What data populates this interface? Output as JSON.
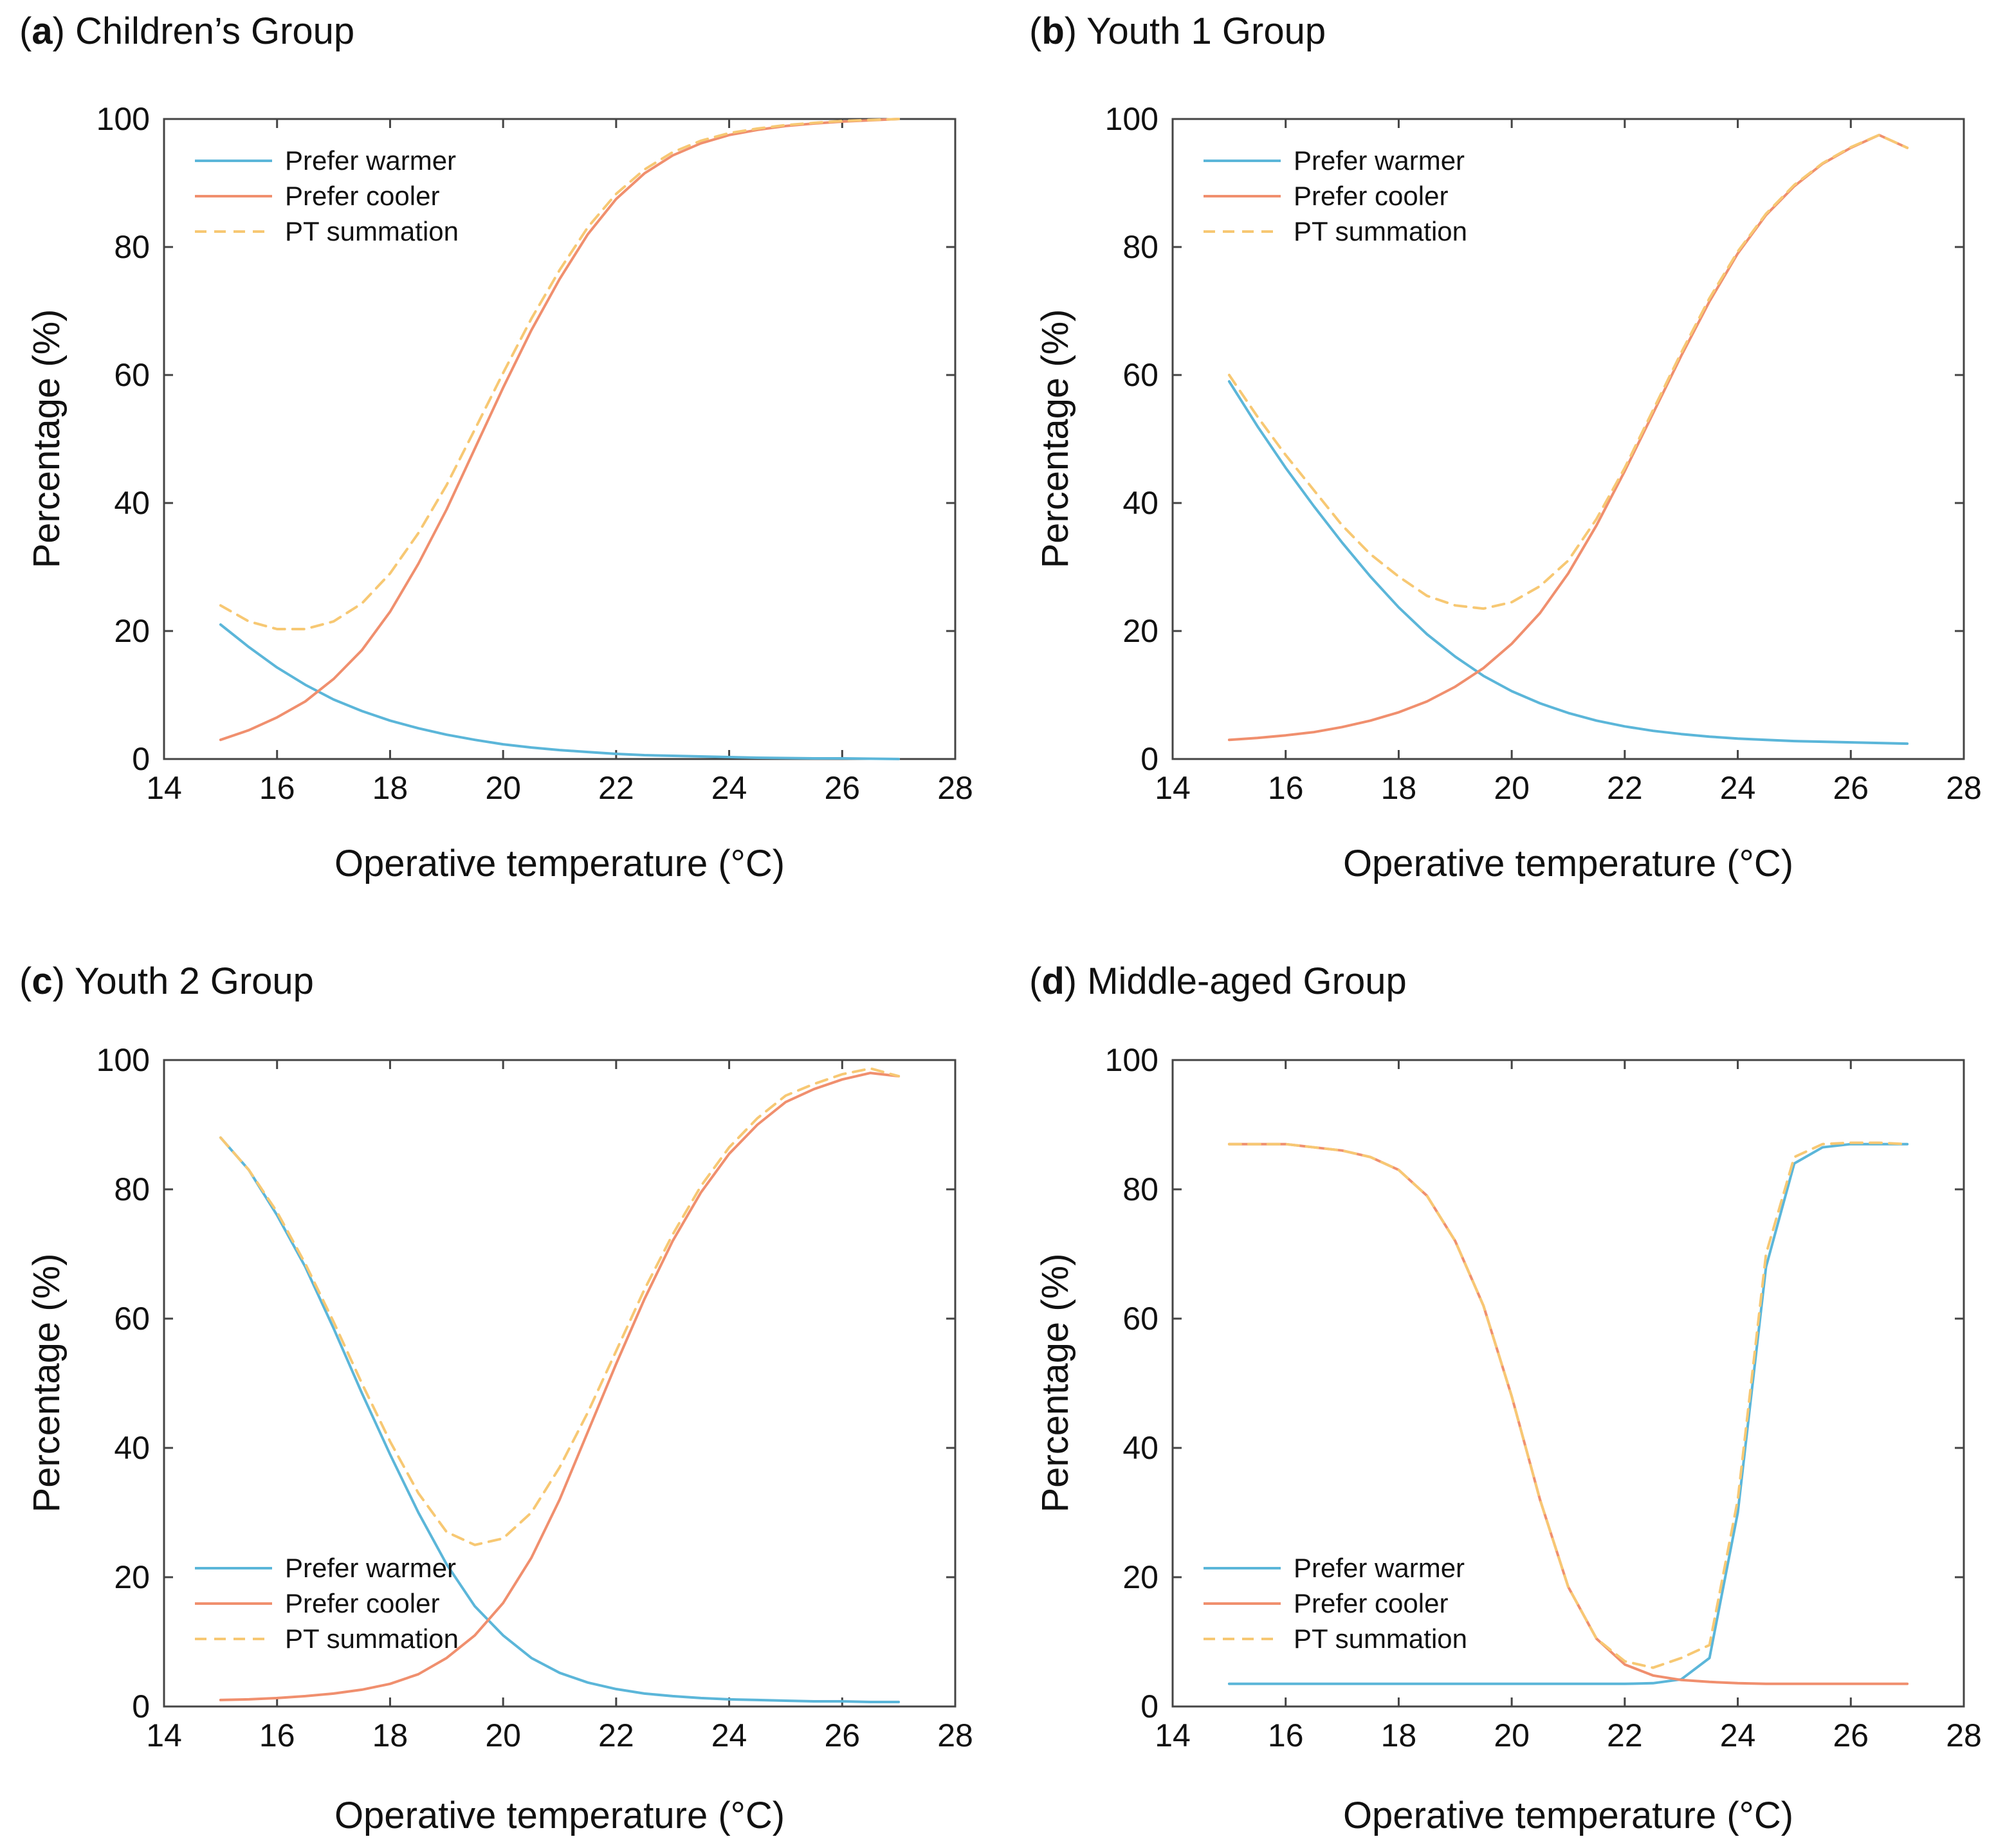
{
  "colors": {
    "prefer_warmer": "#5bb6d9",
    "prefer_cooler": "#f08f6e",
    "pt_summation": "#f7c873",
    "axes": "#444444",
    "text": "#111111"
  },
  "chart_data": [
    {
      "type": "line",
      "panel_letter": "a",
      "title": "Children’s Group",
      "xlabel": "Operative temperature (°C)",
      "ylabel": "Percentage (%)",
      "xlim": [
        14,
        28
      ],
      "ylim": [
        0,
        100
      ],
      "xticks": [
        14,
        16,
        18,
        20,
        22,
        24,
        26,
        28
      ],
      "yticks": [
        0,
        20,
        40,
        60,
        80,
        100
      ],
      "legend_position": "top-left",
      "x": [
        15,
        15.5,
        16,
        16.5,
        17,
        17.5,
        18,
        18.5,
        19,
        19.5,
        20,
        20.5,
        21,
        21.5,
        22,
        22.5,
        23,
        23.5,
        24,
        24.5,
        25,
        25.5,
        26,
        26.5,
        27
      ],
      "series": [
        {
          "name": "Prefer warmer",
          "style": "solid",
          "values": [
            21,
            17.5,
            14.3,
            11.6,
            9.3,
            7.5,
            6,
            4.8,
            3.8,
            3,
            2.3,
            1.8,
            1.4,
            1.1,
            0.8,
            0.6,
            0.5,
            0.4,
            0.3,
            0.2,
            0.15,
            0.1,
            0.1,
            0.05,
            0
          ]
        },
        {
          "name": "Prefer cooler",
          "style": "solid",
          "values": [
            3,
            4.5,
            6.5,
            9,
            12.5,
            17,
            23,
            30.5,
            39,
            48.5,
            58,
            67,
            75,
            82,
            87.5,
            91.5,
            94.3,
            96.2,
            97.5,
            98.3,
            98.9,
            99.3,
            99.6,
            99.8,
            100
          ]
        },
        {
          "name": "PT summation",
          "style": "dashed",
          "values": [
            24,
            21.5,
            20.3,
            20.3,
            21.5,
            24.3,
            29,
            35.3,
            42.8,
            51.5,
            60.3,
            68.8,
            76.4,
            83.1,
            88.3,
            92.1,
            94.8,
            96.6,
            97.8,
            98.5,
            99.05,
            99.4,
            99.7,
            99.85,
            100
          ]
        }
      ]
    },
    {
      "type": "line",
      "panel_letter": "b",
      "title": "Youth 1 Group",
      "xlabel": "Operative temperature (°C)",
      "ylabel": "Percentage (%)",
      "xlim": [
        14,
        28
      ],
      "ylim": [
        0,
        100
      ],
      "xticks": [
        14,
        16,
        18,
        20,
        22,
        24,
        26,
        28
      ],
      "yticks": [
        0,
        20,
        40,
        60,
        80,
        100
      ],
      "legend_position": "top-left",
      "x": [
        15,
        15.5,
        16,
        16.5,
        17,
        17.5,
        18,
        18.5,
        19,
        19.5,
        20,
        20.5,
        21,
        21.5,
        22,
        22.5,
        23,
        23.5,
        24,
        24.5,
        25,
        25.5,
        26,
        26.5,
        27
      ],
      "series": [
        {
          "name": "Prefer warmer",
          "style": "solid",
          "values": [
            59,
            52,
            45.5,
            39.5,
            33.8,
            28.5,
            23.7,
            19.5,
            16,
            13,
            10.6,
            8.7,
            7.2,
            6,
            5.1,
            4.4,
            3.9,
            3.5,
            3.2,
            3,
            2.8,
            2.7,
            2.6,
            2.5,
            2.4
          ]
        },
        {
          "name": "Prefer cooler",
          "style": "solid",
          "values": [
            3,
            3.3,
            3.7,
            4.2,
            5,
            6,
            7.3,
            9,
            11.3,
            14.2,
            18,
            22.8,
            29,
            36.5,
            45,
            54,
            63,
            71.5,
            79,
            85,
            89.5,
            93,
            95.5,
            97.5,
            95.5
          ]
        },
        {
          "name": "PT summation",
          "style": "dashed",
          "values": [
            60,
            53.5,
            47.5,
            42,
            36.5,
            32,
            28.5,
            25.5,
            24,
            23.5,
            24.5,
            27,
            31,
            37.5,
            45.5,
            54.5,
            63.5,
            72,
            79.3,
            85.2,
            89.7,
            93.1,
            95.6,
            97.5,
            95.5
          ]
        }
      ]
    },
    {
      "type": "line",
      "panel_letter": "c",
      "title": "Youth 2 Group",
      "xlabel": "Operative temperature (°C)",
      "ylabel": "Percentage (%)",
      "xlim": [
        14,
        28
      ],
      "ylim": [
        0,
        100
      ],
      "xticks": [
        14,
        16,
        18,
        20,
        22,
        24,
        26,
        28
      ],
      "yticks": [
        0,
        20,
        40,
        60,
        80,
        100
      ],
      "legend_position": "bottom-left",
      "x": [
        15,
        15.5,
        16,
        16.5,
        17,
        17.5,
        18,
        18.5,
        19,
        19.5,
        20,
        20.5,
        21,
        21.5,
        22,
        22.5,
        23,
        23.5,
        24,
        24.5,
        25,
        25.5,
        26,
        26.5,
        27
      ],
      "series": [
        {
          "name": "Prefer warmer",
          "style": "solid",
          "values": [
            88,
            83,
            76,
            68,
            58.5,
            48.5,
            39,
            30,
            22,
            15.5,
            11,
            7.5,
            5.2,
            3.7,
            2.7,
            2,
            1.6,
            1.3,
            1.1,
            1,
            0.9,
            0.8,
            0.8,
            0.7,
            0.7
          ]
        },
        {
          "name": "Prefer cooler",
          "style": "solid",
          "values": [
            1,
            1.1,
            1.3,
            1.6,
            2,
            2.6,
            3.5,
            5,
            7.5,
            11,
            16,
            23,
            32,
            42.5,
            53,
            63,
            72,
            79.5,
            85.5,
            90,
            93.5,
            95.5,
            97,
            98,
            97.5
          ]
        },
        {
          "name": "PT summation",
          "style": "dashed",
          "values": [
            88,
            83,
            76.5,
            68.5,
            59.5,
            50,
            41,
            33,
            27,
            25,
            26,
            30,
            37,
            45.5,
            55,
            64.5,
            73,
            80.5,
            86.5,
            91,
            94.5,
            96.3,
            97.8,
            98.7,
            97.5
          ]
        }
      ]
    },
    {
      "type": "line",
      "panel_letter": "d",
      "title": "Middle-aged Group",
      "xlabel": "Operative temperature (°C)",
      "ylabel": "Percentage (%)",
      "xlim": [
        14,
        28
      ],
      "ylim": [
        0,
        100
      ],
      "xticks": [
        14,
        16,
        18,
        20,
        22,
        24,
        26,
        28
      ],
      "yticks": [
        0,
        20,
        40,
        60,
        80,
        100
      ],
      "legend_position": "bottom-left",
      "x": [
        15,
        15.5,
        16,
        16.5,
        17,
        17.5,
        18,
        18.5,
        19,
        19.5,
        20,
        20.5,
        21,
        21.5,
        22,
        22.5,
        23,
        23.5,
        24,
        24.5,
        25,
        25.5,
        26,
        26.5,
        27
      ],
      "series": [
        {
          "name": "Prefer warmer",
          "style": "solid",
          "values": [
            3.5,
            3.5,
            3.5,
            3.5,
            3.5,
            3.5,
            3.5,
            3.5,
            3.5,
            3.5,
            3.5,
            3.5,
            3.5,
            3.5,
            3.5,
            3.6,
            4.2,
            7.5,
            30,
            68,
            84,
            86.5,
            87,
            87,
            87
          ]
        },
        {
          "name": "Prefer cooler",
          "style": "solid",
          "values": [
            87,
            87,
            87,
            86.5,
            86,
            85,
            83,
            79,
            72,
            62,
            48,
            32,
            18.5,
            10.5,
            6.5,
            4.8,
            4.1,
            3.8,
            3.6,
            3.5,
            3.5,
            3.5,
            3.5,
            3.5,
            3.5
          ]
        },
        {
          "name": "PT summation",
          "style": "dashed",
          "values": [
            87,
            87,
            87,
            86.5,
            86,
            85,
            83,
            79,
            72,
            62,
            48,
            32,
            18.5,
            10.5,
            7,
            6,
            7.5,
            9.5,
            32,
            70,
            85,
            87,
            87.2,
            87.2,
            87
          ]
        }
      ]
    }
  ]
}
